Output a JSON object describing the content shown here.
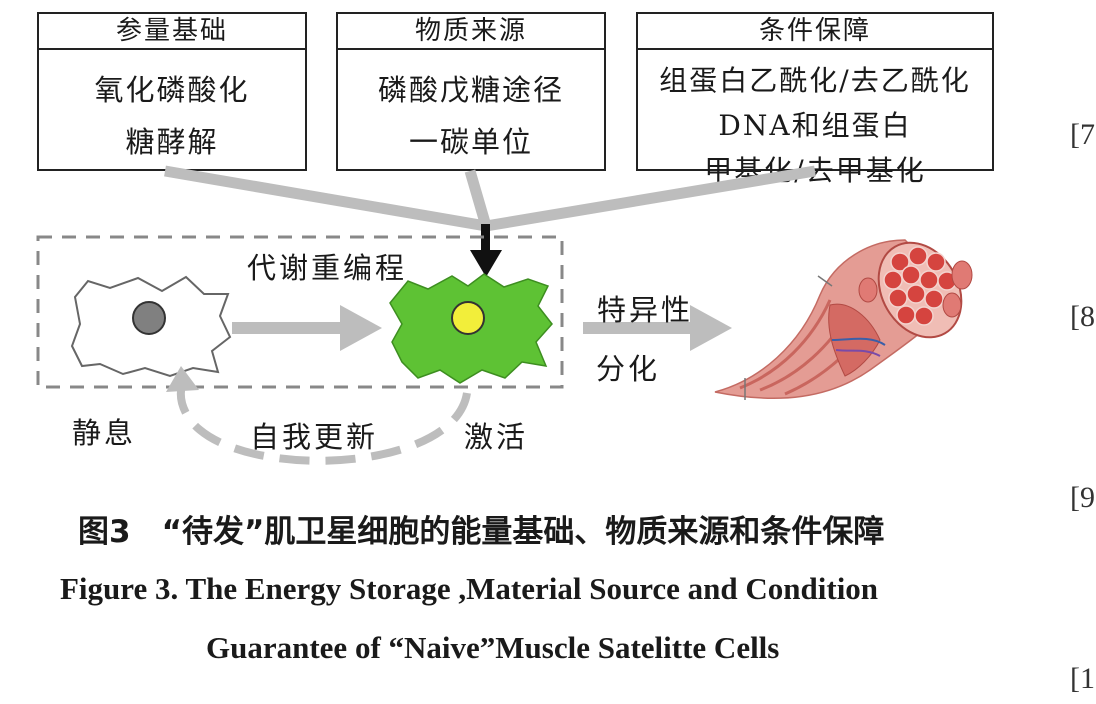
{
  "boxes": [
    {
      "title": "参量基础",
      "lines": [
        "氧化磷酸化",
        "糖酵解"
      ]
    },
    {
      "title": "物质来源",
      "lines": [
        "磷酸戊糖途径",
        "一碳单位"
      ]
    },
    {
      "title": "条件保障",
      "lines": [
        "组蛋白乙酰化/去乙酰化",
        "DNA和组蛋白",
        "甲基化/去甲基化"
      ]
    }
  ],
  "diagram": {
    "reprogramming": "代谢重编程",
    "specific": "特异性",
    "differentiate": "分化",
    "quiescent": "静息",
    "self_renewal": "自我更新",
    "activated": "激活"
  },
  "caption": {
    "cn": "图3　“待发”肌卫星细胞的能量基础、物质来源和条件保障",
    "en_line1": "Figure 3.     The Energy Storage ,Material Source and Condition",
    "en_line2": "Guarantee of “Naive”Muscle Satelitte Cells"
  },
  "refs": [
    "[7",
    "[8",
    "[9",
    "[1"
  ],
  "colors": {
    "arrow_gray": "#bdbdbd",
    "active_cell": "#5ec234",
    "nucleus_quiescent": "#808080",
    "nucleus_active": "#f2ee3a",
    "muscle": "#d9534f"
  }
}
